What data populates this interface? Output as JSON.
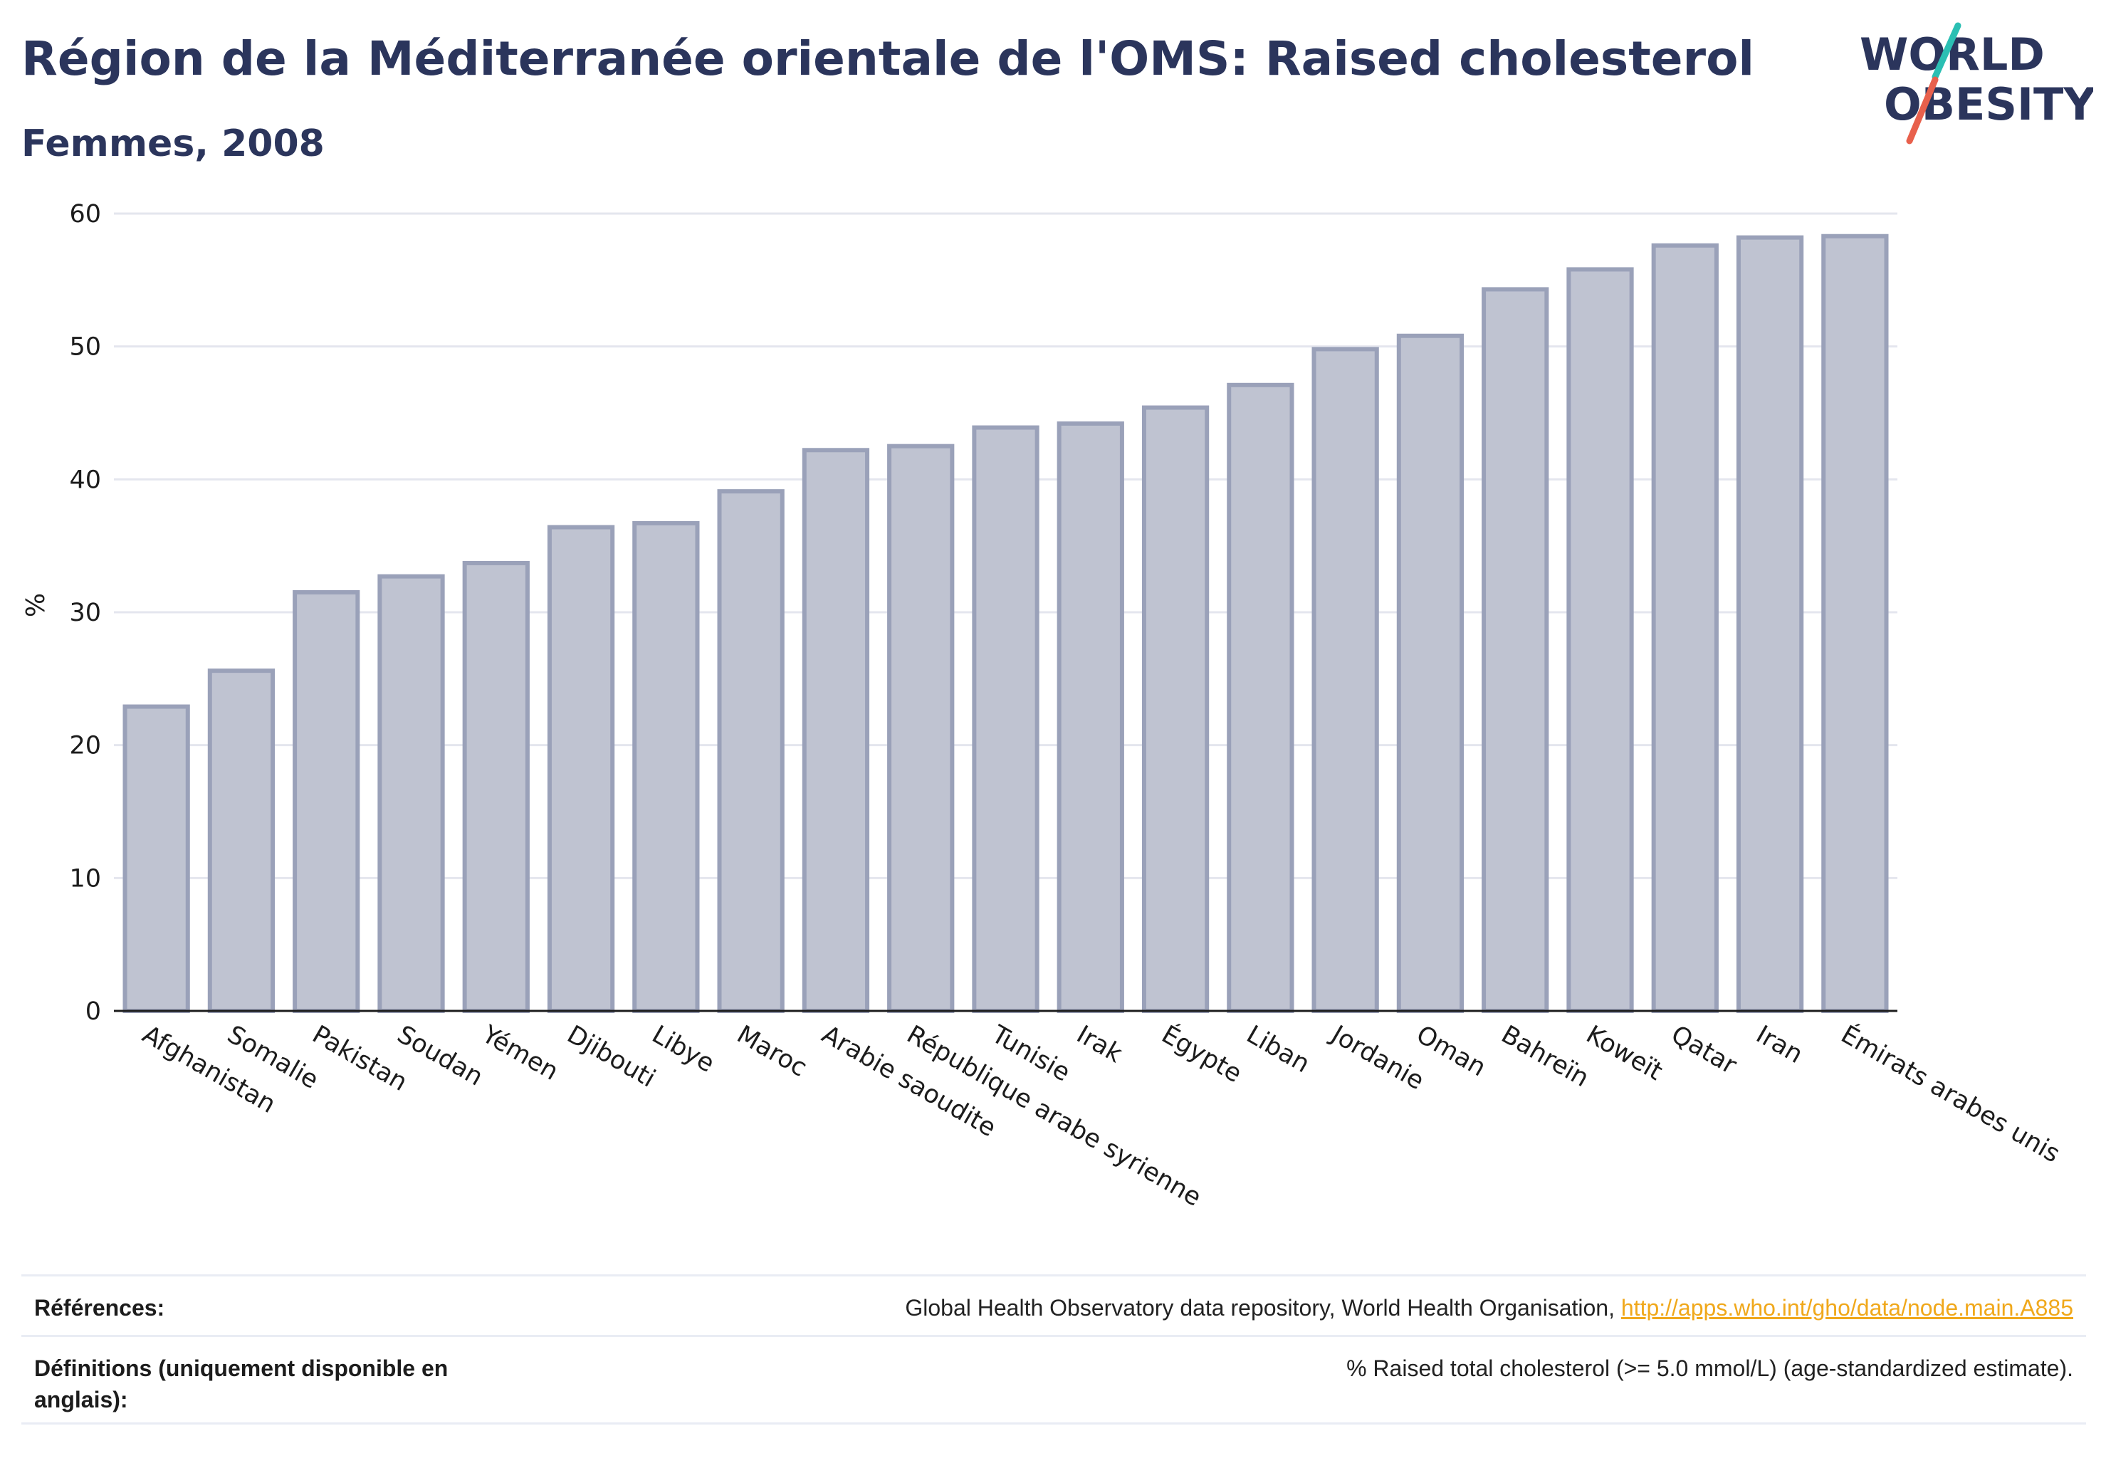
{
  "header": {
    "title": "Région de la Méditerranée orientale de l'OMS: Raised cholesterol",
    "subtitle": "Femmes, 2008"
  },
  "logo": {
    "line1": "WORLD",
    "line2": "OBESITY",
    "accent_colors": [
      "#2bbfb3",
      "#e8604c"
    ]
  },
  "chart_data": {
    "type": "bar",
    "categories": [
      "Afghanistan",
      "Somalie",
      "Pakistan",
      "Soudan",
      "Yémen",
      "Djibouti",
      "Libye",
      "Maroc",
      "Arabie saoudite",
      "République arabe syrienne",
      "Tunisie",
      "Irak",
      "Égypte",
      "Liban",
      "Jordanie",
      "Oman",
      "Bahreïn",
      "Koweït",
      "Qatar",
      "Iran",
      "Émirats arabes unis"
    ],
    "values": [
      22.9,
      25.6,
      31.5,
      32.7,
      33.7,
      36.4,
      36.7,
      39.1,
      42.2,
      42.5,
      43.9,
      44.2,
      45.4,
      47.1,
      49.8,
      50.8,
      54.3,
      55.8,
      57.6,
      58.2,
      58.3
    ],
    "ylabel": "%",
    "xlabel": "",
    "ylim": [
      0,
      60
    ],
    "yticks": [
      0,
      10,
      20,
      30,
      40,
      50,
      60
    ],
    "grid": true,
    "bar_color": "#bfc3d1",
    "bar_border_color": "#9aa1b9",
    "axis_color": "#1c1c1c"
  },
  "references": {
    "label": "Références:",
    "text": "Global Health Observatory data repository, World Health Organisation, ",
    "link": "http://apps.who.int/gho/data/node.main.A885"
  },
  "definitions": {
    "label": "Définitions (uniquement disponible en anglais):",
    "text": "% Raised total cholesterol (>= 5.0 mmol/L) (age-standardized estimate)."
  }
}
